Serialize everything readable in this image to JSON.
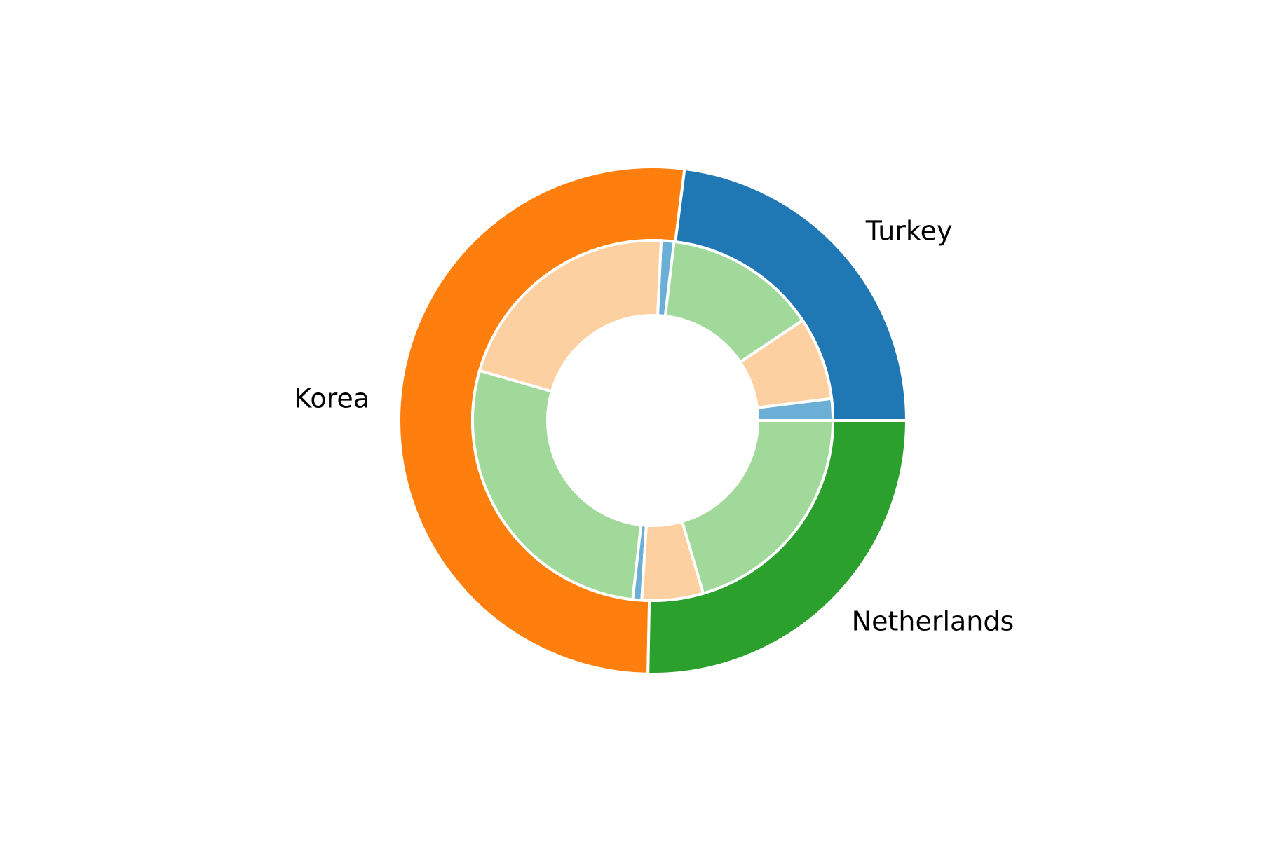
{
  "chart_data": {
    "type": "pie",
    "variant": "nested-donut",
    "title": "",
    "start_angle_deg": 0,
    "direction": "counterclockwise",
    "outer": {
      "labels": [
        "Turkey",
        "Korea",
        "Netherlands"
      ],
      "values": [
        23.0,
        51.7,
        25.3
      ],
      "colors": [
        "#1f77b4",
        "#ff7f0e",
        "#2ca02c"
      ]
    },
    "inner": {
      "values": [
        1.7,
        6.5,
        12.0,
        1.0,
        18.6,
        24.2,
        0.7,
        4.8,
        17.9
      ],
      "colors": [
        "#6baed6",
        "#fdd0a2",
        "#a1d99b",
        "#6baed6",
        "#fdd0a2",
        "#a1d99b",
        "#6baed6",
        "#fdd0a2",
        "#a1d99b"
      ]
    },
    "edge_color": "#ffffff"
  }
}
